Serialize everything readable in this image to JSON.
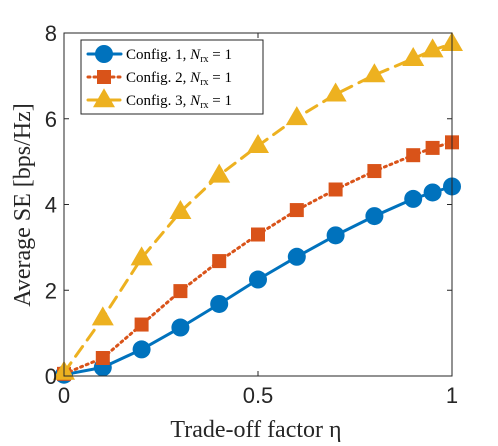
{
  "chart_data": {
    "type": "line",
    "xlabel": "Trade-off factor η",
    "ylabel": "Average SE [bps/Hz]",
    "xlim": [
      0,
      1
    ],
    "ylim": [
      0,
      8
    ],
    "x_ticks": [
      "0",
      "0.5",
      "1"
    ],
    "y_ticks": [
      "0",
      "2",
      "4",
      "6",
      "8"
    ],
    "grid": false,
    "legend_position": "top-left",
    "series": [
      {
        "name": "Config. 1, N_rx = 1",
        "legend_main": "Config. 1, ",
        "legend_var": "N",
        "legend_sub": "rx",
        "legend_tail": " = 1",
        "color": "#0072BD",
        "line_style": "solid",
        "marker": "circle",
        "x": [
          0,
          0.1,
          0.2,
          0.3,
          0.4,
          0.5,
          0.6,
          0.7,
          0.8,
          0.9,
          0.95,
          1.0
        ],
        "values": [
          0.03,
          0.2,
          0.62,
          1.13,
          1.68,
          2.25,
          2.78,
          3.28,
          3.73,
          4.13,
          4.28,
          4.42
        ]
      },
      {
        "name": "Config. 2, N_rx = 1",
        "legend_main": "Config. 2, ",
        "legend_var": "N",
        "legend_sub": "rx",
        "legend_tail": " = 1",
        "color": "#D95319",
        "line_style": "dotted",
        "marker": "square",
        "x": [
          0,
          0.1,
          0.2,
          0.3,
          0.4,
          0.5,
          0.6,
          0.7,
          0.8,
          0.9,
          0.95,
          1.0
        ],
        "values": [
          0.05,
          0.42,
          1.2,
          1.98,
          2.68,
          3.3,
          3.87,
          4.35,
          4.78,
          5.15,
          5.32,
          5.45
        ]
      },
      {
        "name": "Config. 3, N_rx = 1",
        "legend_main": "Config. 3, ",
        "legend_var": "N",
        "legend_sub": "rx",
        "legend_tail": " = 1",
        "color": "#EDB120",
        "line_style": "dashed",
        "marker": "triangle",
        "x": [
          0,
          0.1,
          0.2,
          0.3,
          0.4,
          0.5,
          0.6,
          0.7,
          0.8,
          0.9,
          0.95,
          1.0
        ],
        "values": [
          0.08,
          1.35,
          2.75,
          3.83,
          4.68,
          5.37,
          6.02,
          6.57,
          7.02,
          7.4,
          7.6,
          7.75
        ]
      }
    ]
  }
}
